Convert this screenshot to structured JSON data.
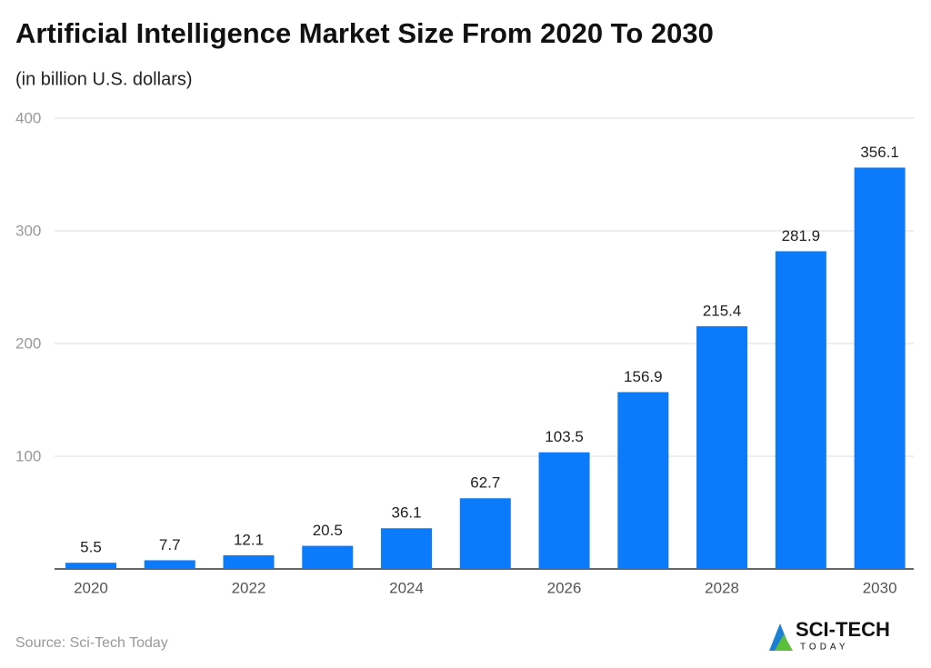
{
  "chart_data": {
    "type": "bar",
    "title": "Artificial Intelligence Market Size From 2020 To 2030",
    "subtitle": "(in billion U.S. dollars)",
    "categories": [
      "2020",
      null,
      "2022",
      null,
      "2024",
      null,
      "2026",
      null,
      "2028",
      null,
      "2030"
    ],
    "values": [
      5.5,
      7.7,
      12.1,
      20.5,
      36.1,
      62.7,
      103.5,
      156.9,
      215.4,
      281.9,
      356.1
    ],
    "color": "#0b7bfb",
    "ylim": [
      0,
      400
    ],
    "yticks": [
      100,
      200,
      300,
      400
    ],
    "grid": true,
    "source": "Source: Sci-Tech Today"
  },
  "logo": {
    "name": "SCI-TECH",
    "tagline": "TODAY"
  }
}
